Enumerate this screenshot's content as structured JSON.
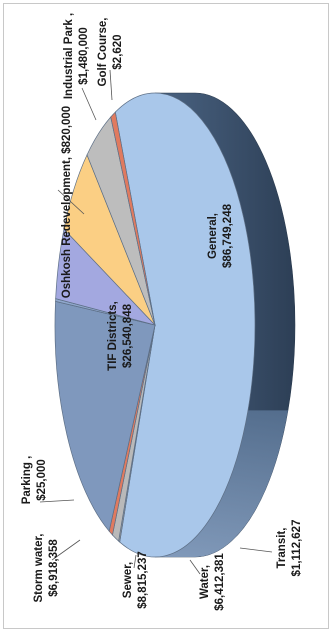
{
  "chart_data": {
    "type": "pie",
    "title": "",
    "series": [
      {
        "category": "General",
        "value_label": "$86,749,248",
        "value": 86749248,
        "color": "#a9c7ea"
      },
      {
        "category": "Golf Course",
        "value_label": "$2,620",
        "value": 2620,
        "color": "#9e9e9e"
      },
      {
        "category": "Industrial Park",
        "value_label": "$1,480,000",
        "value": 1480000,
        "color": "#b9b9b9"
      },
      {
        "category": "Oshkosh Redevelopment",
        "value_label": "$820,000",
        "value": 820000,
        "color": "#e07a5f"
      },
      {
        "category": "TIF Districts",
        "value_label": "$26,540,848",
        "value": 26540848,
        "color": "#7f98bd"
      },
      {
        "category": "Parking",
        "value_label": "$25,000",
        "value": 25000,
        "color": "#8fa7cc"
      },
      {
        "category": "Storm water",
        "value_label": "$6,918,358",
        "value": 6918358,
        "color": "#a3a8e0"
      },
      {
        "category": "Sewer",
        "value_label": "$8,815,237",
        "value": 8815237,
        "color": "#fbcf84"
      },
      {
        "category": "Water",
        "value_label": "$6,412,381",
        "value": 6412381,
        "color": "#bdbdbd"
      },
      {
        "category": "Transit",
        "value_label": "$1,112,627",
        "value": 1112627,
        "color": "#e07a5f"
      }
    ],
    "labels": {
      "general": {
        "name": "General,",
        "value": "$86,749,248"
      },
      "golf": {
        "name": "Golf Course,",
        "value": "$2,620"
      },
      "industrial": {
        "name": "Industrial Park ,",
        "value": "$1,480,000"
      },
      "oshkosh": {
        "name": "Oshkosh Redevelopment, $820,000"
      },
      "tif": {
        "name": "TIF Districts,",
        "value": "$26,540,848"
      },
      "parking": {
        "name": "Parking ,",
        "value": "$25,000"
      },
      "storm": {
        "name": "Storm water,",
        "value": "$6,918,358"
      },
      "sewer": {
        "name": "Sewer,",
        "value": "$8,815,237"
      },
      "water": {
        "name": "Water,",
        "value": "$6,412,381"
      },
      "transit": {
        "name": "Transit,",
        "value": "$1,112,627"
      }
    },
    "legend": "none",
    "orientation": "rotated 90 degrees"
  }
}
